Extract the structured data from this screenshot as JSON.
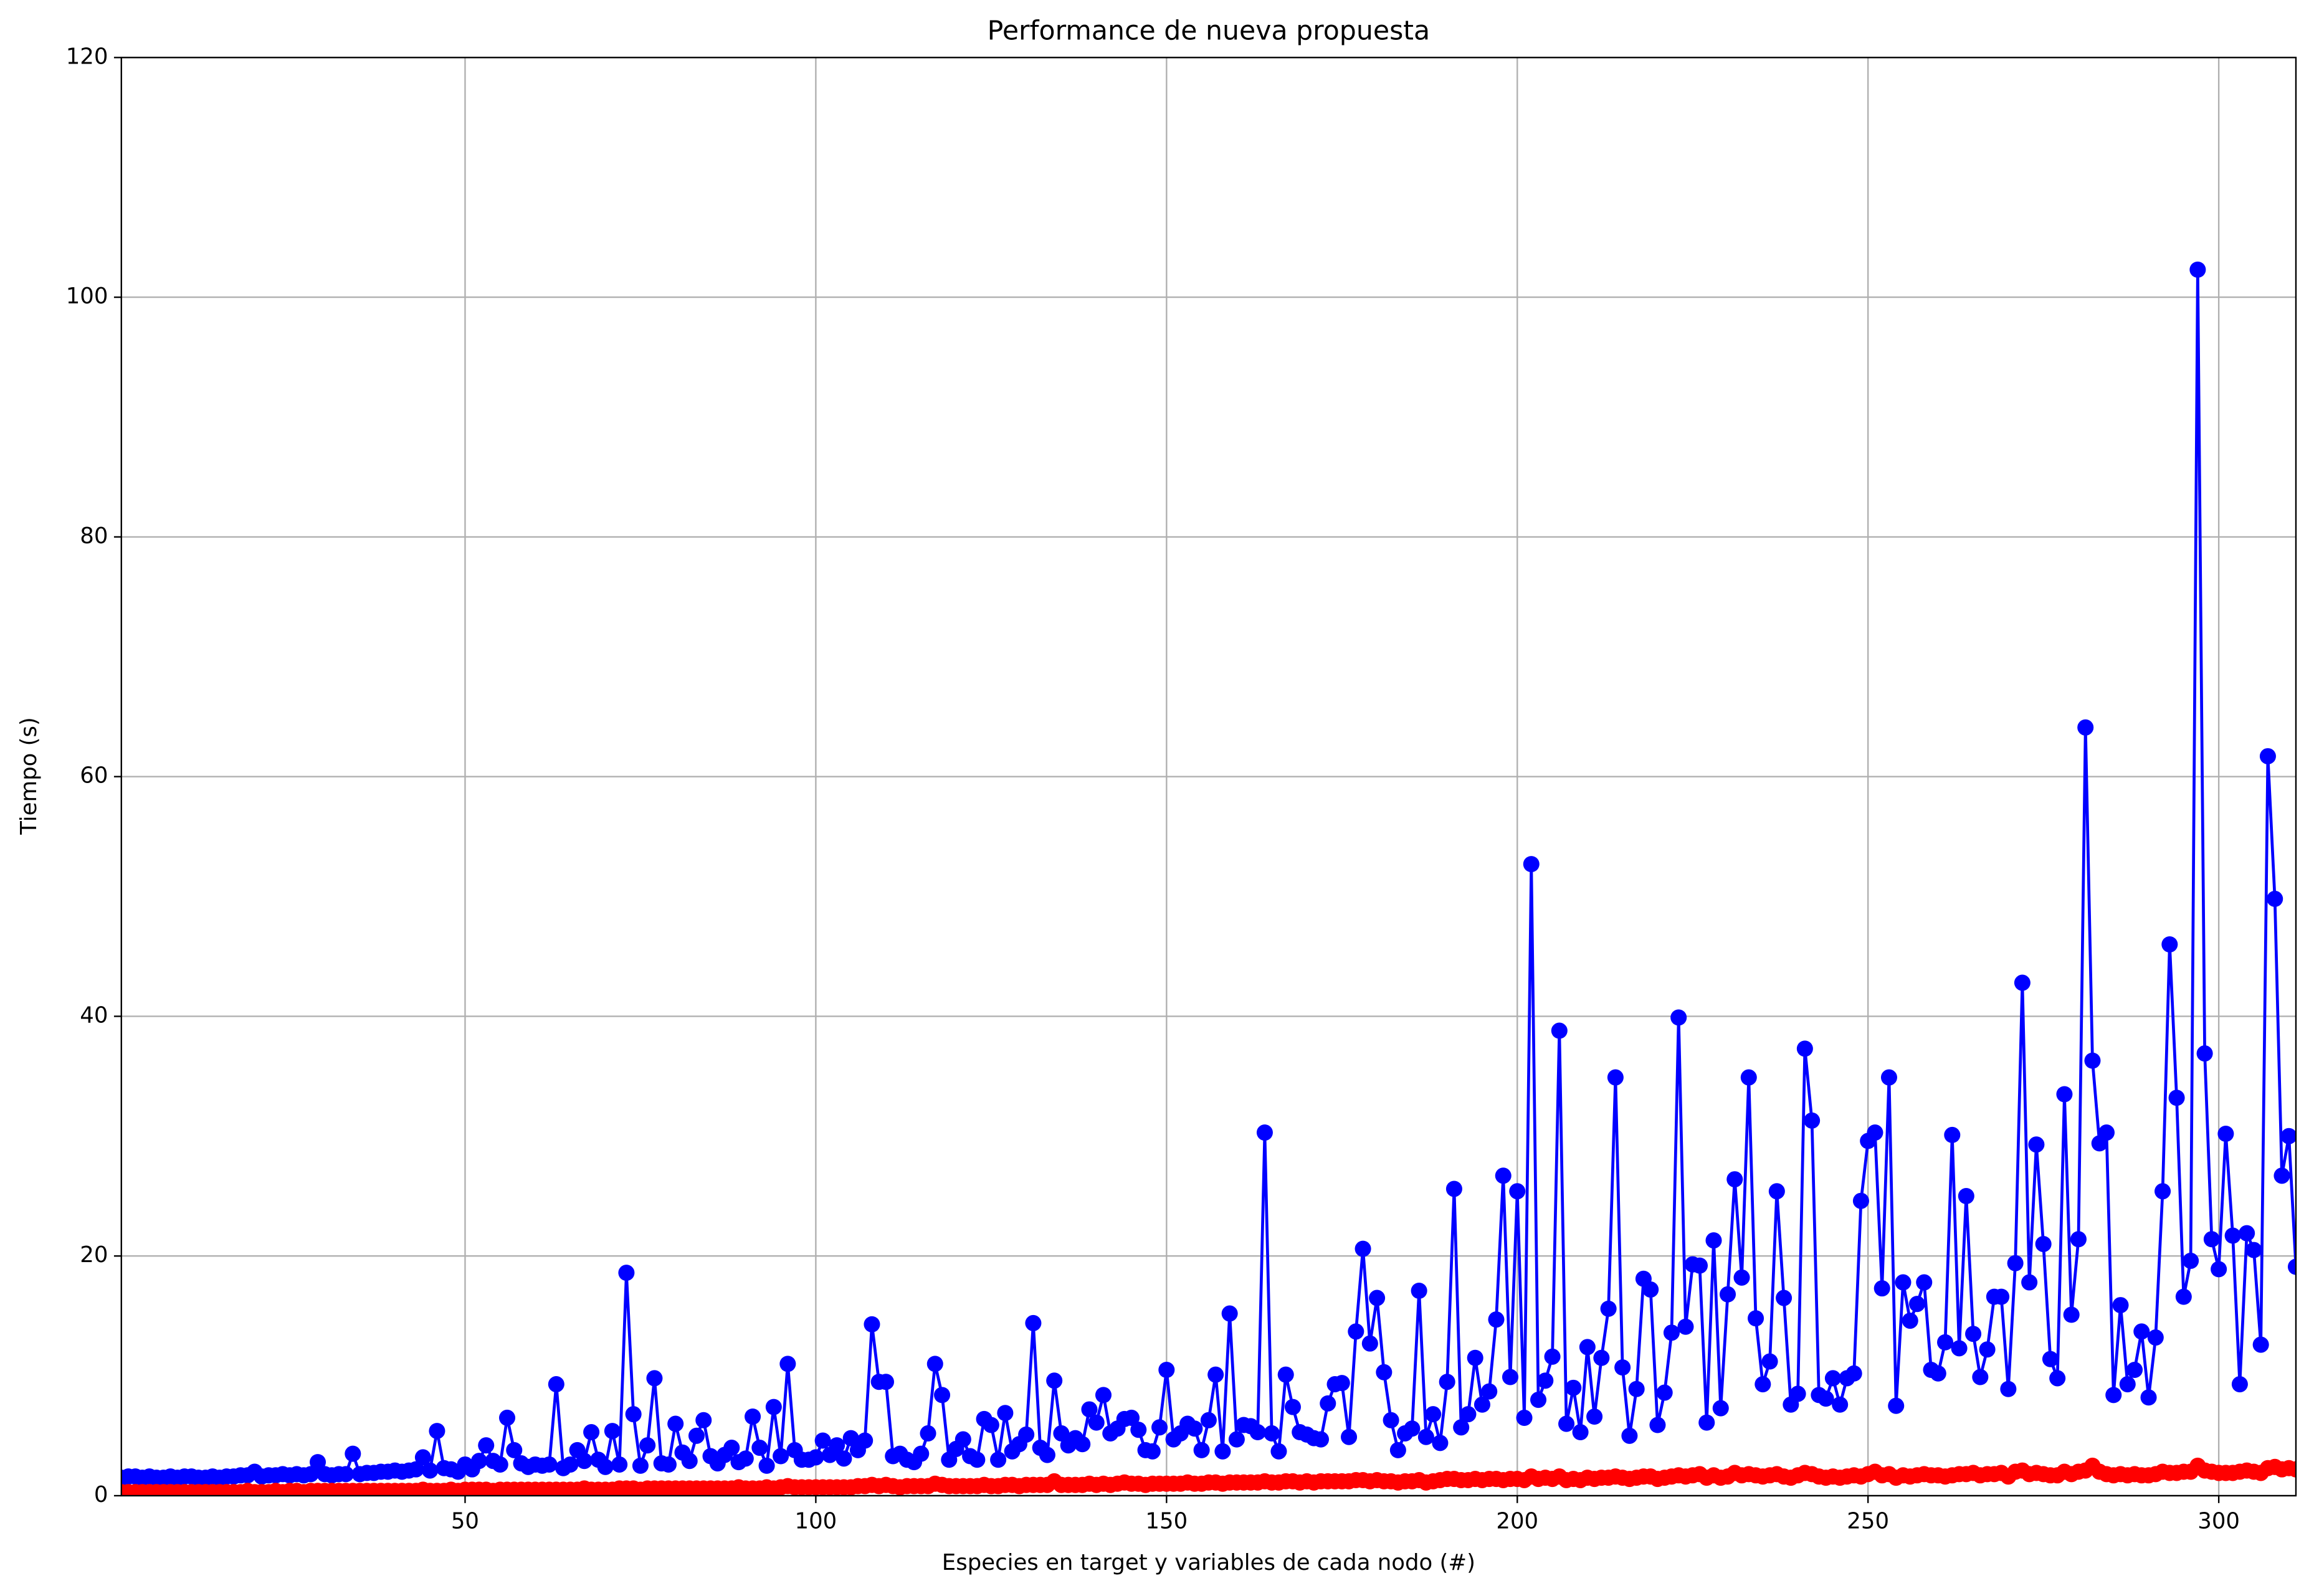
{
  "chart_data": {
    "type": "line",
    "title": "Performance de nueva propuesta",
    "x_label": "Especies en target y variables de cada nodo (#)",
    "y_label": "Tiempo (s)",
    "xlim": [
      1,
      311
    ],
    "ylim": [
      0,
      120
    ],
    "xticks": [
      50,
      100,
      150,
      200,
      250,
      300
    ],
    "yticks": [
      0,
      20,
      40,
      60,
      80,
      100,
      120
    ],
    "grid": true,
    "x": [
      1,
      2,
      3,
      4,
      5,
      6,
      7,
      8,
      9,
      10,
      11,
      12,
      13,
      14,
      15,
      16,
      17,
      18,
      19,
      20,
      21,
      22,
      23,
      24,
      25,
      26,
      27,
      28,
      29,
      30,
      31,
      32,
      33,
      34,
      35,
      36,
      37,
      38,
      39,
      40,
      41,
      42,
      43,
      44,
      45,
      46,
      47,
      48,
      49,
      50,
      51,
      52,
      53,
      54,
      55,
      56,
      57,
      58,
      59,
      60,
      61,
      62,
      63,
      64,
      65,
      66,
      67,
      68,
      69,
      70,
      71,
      72,
      73,
      74,
      75,
      76,
      77,
      78,
      79,
      80,
      81,
      82,
      83,
      84,
      85,
      86,
      87,
      88,
      89,
      90,
      91,
      92,
      93,
      94,
      95,
      96,
      97,
      98,
      99,
      100,
      101,
      102,
      103,
      104,
      105,
      106,
      107,
      108,
      109,
      110,
      111,
      112,
      113,
      114,
      115,
      116,
      117,
      118,
      119,
      120,
      121,
      122,
      123,
      124,
      125,
      126,
      127,
      128,
      129,
      130,
      131,
      132,
      133,
      134,
      135,
      136,
      137,
      138,
      139,
      140,
      141,
      142,
      143,
      144,
      145,
      146,
      147,
      148,
      149,
      150,
      151,
      152,
      153,
      154,
      155,
      156,
      157,
      158,
      159,
      160,
      161,
      162,
      163,
      164,
      165,
      166,
      167,
      168,
      169,
      170,
      171,
      172,
      173,
      174,
      175,
      176,
      177,
      178,
      179,
      180,
      181,
      182,
      183,
      184,
      185,
      186,
      187,
      188,
      189,
      190,
      191,
      192,
      193,
      194,
      195,
      196,
      197,
      198,
      199,
      200,
      201,
      202,
      203,
      204,
      205,
      206,
      207,
      208,
      209,
      210,
      211,
      212,
      213,
      214,
      215,
      216,
      217,
      218,
      219,
      220,
      221,
      222,
      223,
      224,
      225,
      226,
      227,
      228,
      229,
      230,
      231,
      232,
      233,
      234,
      235,
      236,
      237,
      238,
      239,
      240,
      241,
      242,
      243,
      244,
      245,
      246,
      247,
      248,
      249,
      250,
      251,
      252,
      253,
      254,
      255,
      256,
      257,
      258,
      259,
      260,
      261,
      262,
      263,
      264,
      265,
      266,
      267,
      268,
      269,
      270,
      271,
      272,
      273,
      274,
      275,
      276,
      277,
      278,
      279,
      280,
      281,
      282,
      283,
      284,
      285,
      286,
      287,
      288,
      289,
      290,
      291,
      292,
      293,
      294,
      295,
      296,
      297,
      298,
      299,
      300,
      301,
      302,
      303,
      304,
      305,
      306,
      307,
      308,
      309,
      310,
      311
    ],
    "series": [
      {
        "color": "#0000ff",
        "values": [
          1.5,
          1.6,
          1.6,
          1.5,
          1.6,
          1.5,
          1.5,
          1.6,
          1.5,
          1.6,
          1.6,
          1.5,
          1.5,
          1.6,
          1.5,
          1.6,
          1.6,
          1.7,
          1.7,
          2.0,
          1.6,
          1.7,
          1.7,
          1.8,
          1.7,
          1.8,
          1.7,
          1.8,
          2.8,
          1.8,
          1.7,
          1.8,
          1.8,
          3.5,
          1.8,
          1.9,
          1.9,
          2.0,
          2.0,
          2.1,
          2.0,
          2.1,
          2.2,
          3.2,
          2.1,
          5.4,
          2.3,
          2.2,
          2.0,
          2.6,
          2.2,
          2.9,
          4.2,
          2.9,
          2.6,
          6.5,
          3.8,
          2.7,
          2.4,
          2.6,
          2.5,
          2.6,
          9.3,
          2.3,
          2.6,
          3.8,
          2.9,
          5.3,
          3.0,
          2.4,
          5.4,
          2.6,
          18.6,
          6.8,
          2.5,
          4.2,
          9.8,
          2.7,
          2.6,
          6.0,
          3.6,
          2.9,
          5.0,
          6.3,
          3.3,
          2.7,
          3.4,
          4.0,
          2.8,
          3.1,
          6.6,
          4.0,
          2.5,
          7.4,
          3.3,
          11.0,
          3.8,
          3.0,
          3.0,
          3.2,
          4.6,
          3.4,
          4.2,
          3.1,
          4.8,
          3.8,
          4.6,
          14.3,
          9.5,
          9.5,
          3.3,
          3.5,
          3.0,
          2.8,
          3.5,
          5.2,
          11.0,
          8.4,
          3.0,
          3.9,
          4.7,
          3.3,
          3.0,
          6.4,
          5.9,
          3.0,
          6.9,
          3.7,
          4.3,
          5.1,
          14.4,
          4.0,
          3.4,
          9.6,
          5.2,
          4.2,
          4.8,
          4.3,
          7.2,
          6.1,
          8.4,
          5.2,
          5.6,
          6.4,
          6.5,
          5.5,
          3.8,
          3.7,
          5.7,
          10.5,
          4.7,
          5.2,
          6.0,
          5.6,
          3.8,
          6.3,
          10.1,
          3.7,
          15.2,
          4.7,
          5.9,
          5.8,
          5.3,
          30.3,
          5.2,
          3.7,
          10.1,
          7.4,
          5.3,
          5.1,
          4.8,
          4.7,
          7.7,
          9.3,
          9.4,
          4.9,
          13.7,
          20.6,
          12.7,
          16.5,
          10.3,
          6.3,
          3.8,
          5.2,
          5.6,
          17.1,
          4.9,
          6.8,
          4.4,
          9.5,
          25.6,
          5.7,
          6.8,
          11.5,
          7.6,
          8.7,
          14.7,
          26.7,
          9.9,
          25.4,
          6.5,
          52.7,
          8.0,
          9.6,
          11.6,
          38.8,
          6.0,
          9.0,
          5.3,
          12.4,
          6.6,
          11.5,
          15.6,
          34.9,
          10.7,
          5.0,
          8.9,
          18.1,
          17.2,
          5.9,
          8.6,
          13.6,
          39.9,
          14.1,
          19.3,
          19.2,
          6.1,
          21.3,
          7.3,
          16.8,
          26.4,
          18.2,
          34.9,
          14.8,
          9.3,
          11.2,
          25.4,
          16.5,
          7.6,
          8.5,
          37.3,
          31.3,
          8.4,
          8.1,
          9.8,
          7.6,
          9.8,
          10.2,
          24.6,
          29.6,
          30.3,
          17.3,
          34.9,
          7.5,
          17.8,
          14.6,
          16.0,
          17.8,
          10.5,
          10.2,
          12.8,
          30.1,
          12.3,
          25.0,
          13.5,
          9.9,
          12.2,
          16.6,
          16.6,
          8.9,
          19.4,
          42.8,
          17.8,
          29.3,
          21.0,
          11.4,
          9.8,
          33.5,
          15.1,
          21.4,
          64.1,
          36.3,
          29.4,
          30.3,
          8.4,
          15.9,
          9.3,
          10.5,
          13.7,
          8.2,
          13.2,
          25.4,
          46.0,
          33.2,
          16.6,
          19.6,
          102.3,
          36.9,
          21.4,
          18.9,
          30.2,
          21.7,
          9.3,
          21.9,
          20.5,
          12.6,
          61.7,
          49.8,
          26.7,
          30.0,
          19.1
        ]
      },
      {
        "color": "#ff0000",
        "values": [
          0.3,
          0.3,
          0.3,
          0.3,
          0.3,
          0.3,
          0.3,
          0.3,
          0.3,
          0.3,
          0.3,
          0.3,
          0.3,
          0.3,
          0.3,
          0.3,
          0.3,
          0.3,
          0.4,
          0.3,
          0.3,
          0.3,
          0.4,
          0.3,
          0.4,
          0.4,
          0.3,
          0.4,
          0.4,
          0.4,
          0.4,
          0.4,
          0.4,
          0.4,
          0.4,
          0.4,
          0.4,
          0.4,
          0.4,
          0.4,
          0.4,
          0.4,
          0.4,
          0.5,
          0.4,
          0.4,
          0.4,
          0.5,
          0.4,
          0.5,
          0.5,
          0.5,
          0.5,
          0.4,
          0.5,
          0.5,
          0.5,
          0.5,
          0.5,
          0.5,
          0.5,
          0.5,
          0.5,
          0.5,
          0.5,
          0.5,
          0.6,
          0.5,
          0.5,
          0.5,
          0.5,
          0.6,
          0.6,
          0.6,
          0.5,
          0.6,
          0.6,
          0.6,
          0.6,
          0.6,
          0.6,
          0.6,
          0.6,
          0.6,
          0.6,
          0.6,
          0.6,
          0.6,
          0.7,
          0.6,
          0.6,
          0.6,
          0.7,
          0.6,
          0.7,
          0.8,
          0.7,
          0.7,
          0.7,
          0.7,
          0.7,
          0.7,
          0.7,
          0.7,
          0.7,
          0.8,
          0.8,
          0.9,
          0.8,
          0.9,
          0.8,
          0.7,
          0.8,
          0.8,
          0.8,
          0.8,
          1.0,
          0.9,
          0.8,
          0.8,
          0.8,
          0.8,
          0.8,
          0.9,
          0.8,
          0.8,
          0.9,
          0.9,
          0.8,
          0.9,
          0.9,
          0.9,
          0.9,
          1.2,
          0.9,
          0.9,
          0.9,
          0.9,
          1.0,
          0.9,
          1.0,
          0.9,
          1.0,
          1.1,
          1.0,
          1.0,
          0.9,
          1.0,
          1.0,
          1.0,
          1.0,
          1.0,
          1.1,
          1.0,
          1.0,
          1.1,
          1.1,
          1.0,
          1.1,
          1.1,
          1.1,
          1.1,
          1.1,
          1.2,
          1.1,
          1.1,
          1.2,
          1.2,
          1.1,
          1.2,
          1.1,
          1.2,
          1.2,
          1.2,
          1.2,
          1.2,
          1.3,
          1.3,
          1.2,
          1.3,
          1.2,
          1.2,
          1.1,
          1.2,
          1.2,
          1.3,
          1.1,
          1.2,
          1.3,
          1.4,
          1.4,
          1.3,
          1.3,
          1.4,
          1.3,
          1.4,
          1.4,
          1.3,
          1.4,
          1.4,
          1.3,
          1.6,
          1.4,
          1.5,
          1.4,
          1.6,
          1.3,
          1.4,
          1.3,
          1.5,
          1.4,
          1.5,
          1.5,
          1.6,
          1.5,
          1.4,
          1.5,
          1.6,
          1.6,
          1.4,
          1.5,
          1.6,
          1.7,
          1.6,
          1.7,
          1.8,
          1.5,
          1.7,
          1.5,
          1.6,
          1.9,
          1.7,
          1.8,
          1.7,
          1.6,
          1.7,
          1.8,
          1.6,
          1.5,
          1.7,
          1.9,
          1.8,
          1.6,
          1.5,
          1.6,
          1.5,
          1.6,
          1.7,
          1.6,
          1.8,
          2.0,
          1.7,
          1.8,
          1.5,
          1.7,
          1.6,
          1.7,
          1.8,
          1.7,
          1.7,
          1.6,
          1.7,
          1.8,
          1.8,
          1.9,
          1.7,
          1.8,
          1.8,
          1.9,
          1.6,
          2.0,
          2.1,
          1.8,
          1.9,
          1.8,
          1.7,
          1.7,
          2.0,
          1.8,
          2.0,
          2.1,
          2.5,
          2.0,
          1.8,
          1.7,
          1.8,
          1.7,
          1.8,
          1.7,
          1.7,
          1.8,
          2.0,
          1.9,
          1.9,
          2.0,
          2.0,
          2.5,
          2.1,
          2.0,
          1.9,
          1.9,
          1.9,
          2.0,
          2.1,
          2.0,
          1.9,
          2.3,
          2.4,
          2.2,
          2.3,
          2.2
        ]
      }
    ]
  }
}
